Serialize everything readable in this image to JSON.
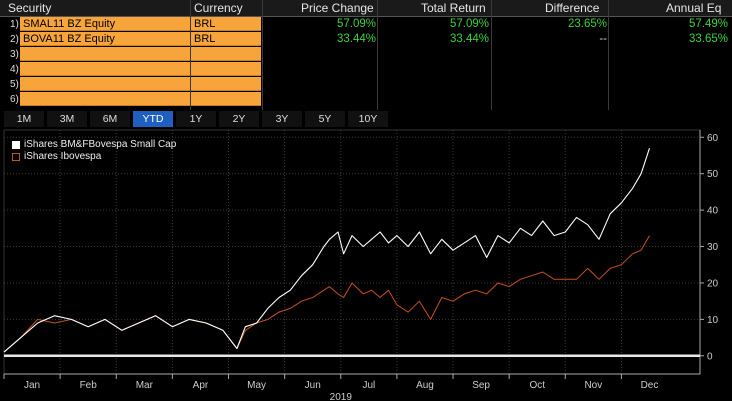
{
  "table": {
    "headers": [
      "Security",
      "Currency",
      "Price Change",
      "Total Return",
      "Difference",
      "Annual Eq"
    ],
    "rows": [
      {
        "num": "1)",
        "security": "SMAL11 BZ Equity",
        "currency": "BRL",
        "price_change": "57.09%",
        "total_return": "57.09%",
        "difference": "23.65%",
        "annual_eq": "57.49%"
      },
      {
        "num": "2)",
        "security": "BOVA11 BZ Equity",
        "currency": "BRL",
        "price_change": "33.44%",
        "total_return": "33.44%",
        "difference": "--",
        "annual_eq": "33.65%"
      },
      {
        "num": "3)",
        "security": "",
        "currency": "",
        "price_change": "",
        "total_return": "",
        "difference": "",
        "annual_eq": ""
      },
      {
        "num": "4)",
        "security": "",
        "currency": "",
        "price_change": "",
        "total_return": "",
        "difference": "",
        "annual_eq": ""
      },
      {
        "num": "5)",
        "security": "",
        "currency": "",
        "price_change": "",
        "total_return": "",
        "difference": "",
        "annual_eq": ""
      },
      {
        "num": "6)",
        "security": "",
        "currency": "",
        "price_change": "",
        "total_return": "",
        "difference": "",
        "annual_eq": ""
      }
    ]
  },
  "periods": {
    "labels": [
      "1M",
      "3M",
      "6M",
      "YTD",
      "1Y",
      "2Y",
      "3Y",
      "5Y",
      "10Y"
    ],
    "active": "YTD"
  },
  "colors": {
    "accent_orange": "#f7a53b",
    "positive_green": "#3bd23b",
    "active_blue": "#1f5fbf",
    "series_white": "#ffffff",
    "series_orange": "#c8501e"
  },
  "chart_data": {
    "type": "line",
    "legend": [
      "iShares BM&FBovespa Small Cap",
      "iShares Ibovespa"
    ],
    "x_labels": [
      "Jan",
      "Feb",
      "Mar",
      "Apr",
      "May",
      "Jun",
      "Jul",
      "Aug",
      "Sep",
      "Oct",
      "Nov",
      "Dec"
    ],
    "x_year": "2019",
    "ylim": [
      -5,
      62
    ],
    "y_ticks": [
      0,
      10,
      20,
      30,
      40,
      50,
      60
    ],
    "grid": true,
    "legend_position": "top-left",
    "series": [
      {
        "name": "iShares BM&FBovespa Small Cap",
        "x": [
          0.0,
          0.3,
          0.6,
          0.9,
          1.2,
          1.5,
          1.8,
          2.1,
          2.4,
          2.7,
          3.0,
          3.3,
          3.6,
          3.9,
          4.15,
          4.3,
          4.5,
          4.7,
          4.9,
          5.1,
          5.3,
          5.5,
          5.7,
          5.8,
          5.95,
          6.05,
          6.2,
          6.4,
          6.55,
          6.7,
          6.85,
          7.0,
          7.2,
          7.4,
          7.6,
          7.8,
          8.0,
          8.2,
          8.4,
          8.6,
          8.8,
          9.0,
          9.2,
          9.4,
          9.6,
          9.8,
          10.0,
          10.2,
          10.4,
          10.6,
          10.8,
          11.0,
          11.2,
          11.35,
          11.5
        ],
        "values": [
          1,
          5,
          9,
          11,
          10,
          8,
          10,
          7,
          9,
          11,
          8,
          10,
          9,
          7,
          2,
          8,
          9,
          13,
          16,
          18,
          22,
          25,
          30,
          32,
          34,
          28,
          33,
          30,
          32,
          34,
          31,
          33,
          30,
          34,
          28,
          32,
          29,
          31,
          33,
          27,
          33,
          31,
          35,
          33,
          37,
          33,
          34,
          38,
          36,
          32,
          39,
          42,
          46,
          50,
          57
        ]
      },
      {
        "name": "iShares Ibovespa",
        "x": [
          0.0,
          0.3,
          0.6,
          0.9,
          1.2,
          1.5,
          1.8,
          2.1,
          2.4,
          2.7,
          3.0,
          3.3,
          3.6,
          3.9,
          4.15,
          4.3,
          4.5,
          4.7,
          4.9,
          5.1,
          5.3,
          5.5,
          5.7,
          5.8,
          5.95,
          6.05,
          6.2,
          6.4,
          6.55,
          6.7,
          6.85,
          7.0,
          7.2,
          7.4,
          7.6,
          7.8,
          8.0,
          8.2,
          8.4,
          8.6,
          8.8,
          9.0,
          9.2,
          9.4,
          9.6,
          9.8,
          10.0,
          10.2,
          10.4,
          10.6,
          10.8,
          11.0,
          11.2,
          11.35,
          11.5
        ],
        "values": [
          1,
          5,
          10,
          9,
          10,
          8,
          10,
          7,
          9,
          11,
          8,
          10,
          9,
          7,
          2,
          7,
          9,
          10,
          12,
          13,
          15,
          16,
          18,
          19,
          17,
          16,
          20,
          17,
          18,
          16,
          18,
          14,
          12,
          15,
          10,
          16,
          15,
          17,
          18,
          17,
          20,
          19,
          21,
          22,
          23,
          21,
          21,
          21,
          24,
          21,
          24,
          25,
          28,
          29,
          33
        ]
      }
    ]
  }
}
